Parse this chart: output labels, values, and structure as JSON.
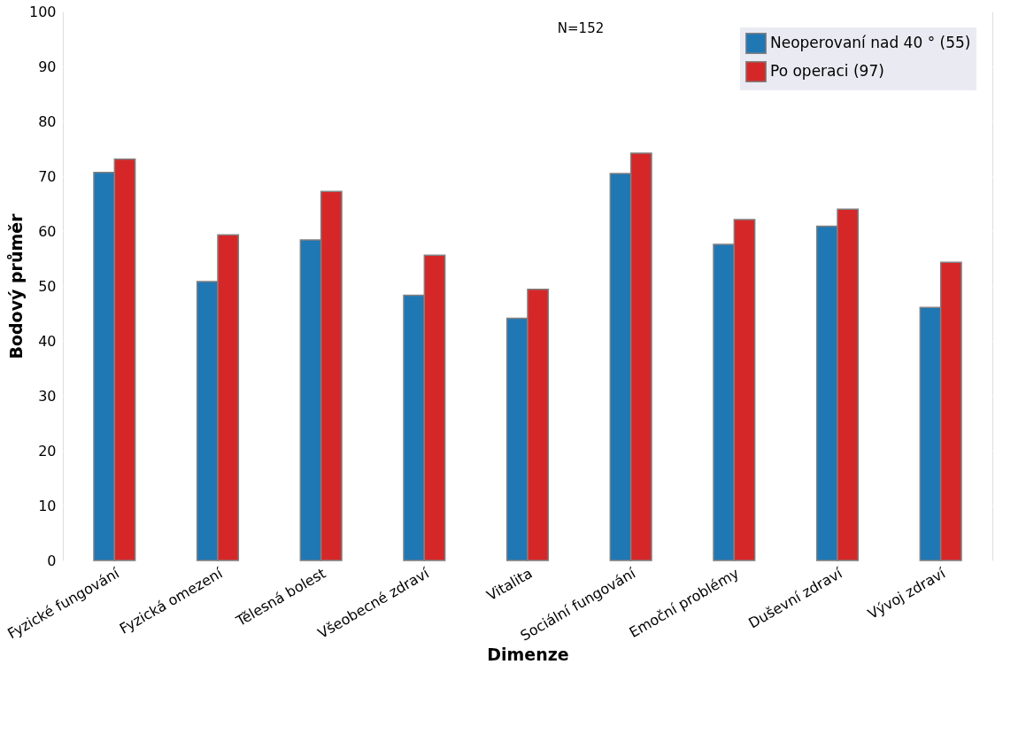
{
  "chart_data": {
    "type": "bar",
    "xlabel": "Dimenze",
    "ylabel": "Bodový průměr",
    "categories": [
      "Fyzické fungování",
      "Fyzická omezení",
      "Tělesná bolest",
      "Všeobecné zdraví",
      "Vitalita",
      "Sociální fungování",
      "Emoční problémy",
      "Duševní zdraví",
      "Vývoj zdraví"
    ],
    "series": [
      {
        "name": "Neoperovaní nad 40 ° (55)",
        "color": "#1f77b4",
        "values": [
          70.7,
          50.8,
          58.4,
          48.3,
          44.1,
          70.5,
          57.6,
          60.9,
          46.1
        ]
      },
      {
        "name": "Po operaci (97)",
        "color": "#d62728",
        "values": [
          73.1,
          59.3,
          67.2,
          55.6,
          49.4,
          74.2,
          62.1,
          64.0,
          54.3
        ]
      }
    ],
    "ylim": [
      0,
      100
    ],
    "yticks": [
      0,
      10,
      20,
      30,
      40,
      50,
      60,
      70,
      80,
      90,
      100
    ],
    "annotations": [
      "N=152"
    ],
    "grid": true,
    "legend": "top right"
  }
}
